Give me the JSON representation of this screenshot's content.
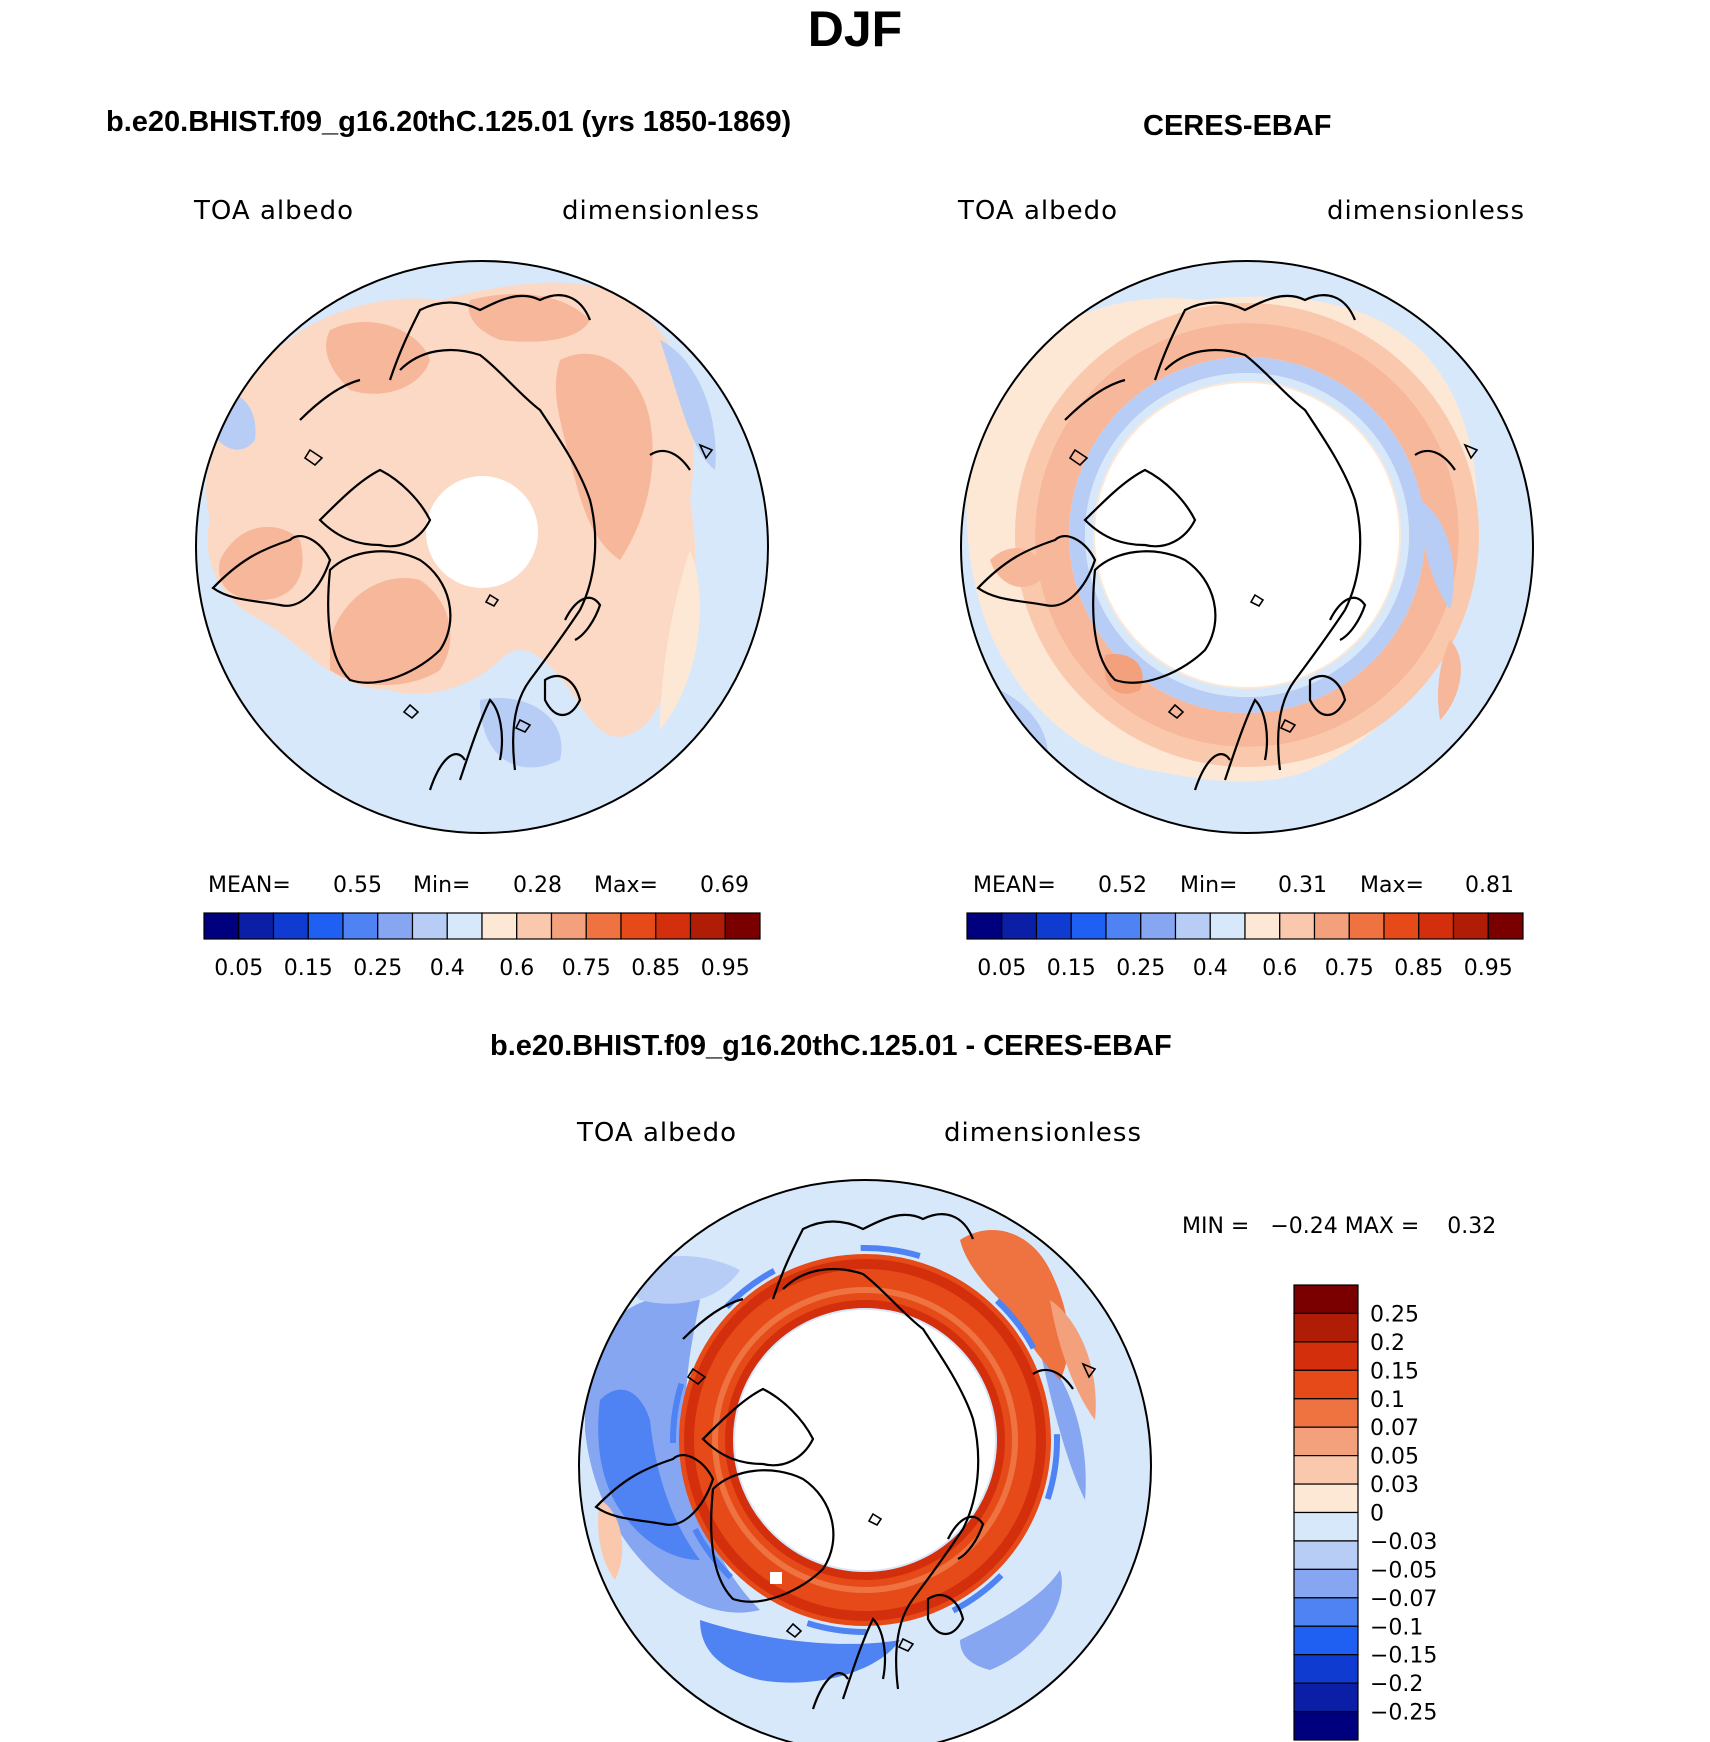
{
  "title": "DJF",
  "panels": [
    {
      "id": "model",
      "title": "b.e20.BHIST.f09_g16.20thC.125.01 (yrs 1850-1869)",
      "left_label": "TOA albedo",
      "right_label": "dimensionless",
      "stats": {
        "mean_label": "MEAN=",
        "mean": "0.55",
        "min_label": "Min=",
        "min": "0.28",
        "max_label": "Max=",
        "max": "0.69"
      }
    },
    {
      "id": "obs",
      "title": "CERES-EBAF",
      "left_label": "TOA albedo",
      "right_label": "dimensionless",
      "stats": {
        "mean_label": "MEAN=",
        "mean": "0.52",
        "min_label": "Min=",
        "min": "0.31",
        "max_label": "Max=",
        "max": "0.81"
      }
    },
    {
      "id": "diff",
      "title": "b.e20.BHIST.f09_g16.20thC.125.01 - CERES-EBAF",
      "left_label": "TOA albedo",
      "right_label": "dimensionless",
      "stats_text": "MIN =   −0.24 MAX =    0.32"
    }
  ],
  "colorbar_abs": {
    "colors": [
      "#00007f",
      "#0a1fa6",
      "#0f3bd0",
      "#1f5ff2",
      "#4f82f2",
      "#86a6f2",
      "#b8cdf6",
      "#d8e8fb",
      "#fde8d6",
      "#fac8ad",
      "#f3a07c",
      "#ee7340",
      "#e64a19",
      "#d42f0c",
      "#b01d07",
      "#7a0000"
    ],
    "labels": [
      "0.05",
      "0.15",
      "0.25",
      "0.4",
      "0.6",
      "0.75",
      "0.85",
      "0.95"
    ]
  },
  "colorbar_diff": {
    "colors": [
      "#7a0000",
      "#b01d07",
      "#d42f0c",
      "#e64a19",
      "#ee7340",
      "#f3a07c",
      "#fac8ad",
      "#fde8d6",
      "#d8e8fb",
      "#b8cdf6",
      "#86a6f2",
      "#4f82f2",
      "#1f5ff2",
      "#0f3bd0",
      "#0a1fa6",
      "#00007f"
    ],
    "labels": [
      "0.25",
      "0.2",
      "0.15",
      "0.1",
      "0.07",
      "0.05",
      "0.03",
      "0",
      "−0.03",
      "−0.05",
      "−0.07",
      "−0.1",
      "−0.15",
      "−0.2",
      "−0.25"
    ]
  }
}
